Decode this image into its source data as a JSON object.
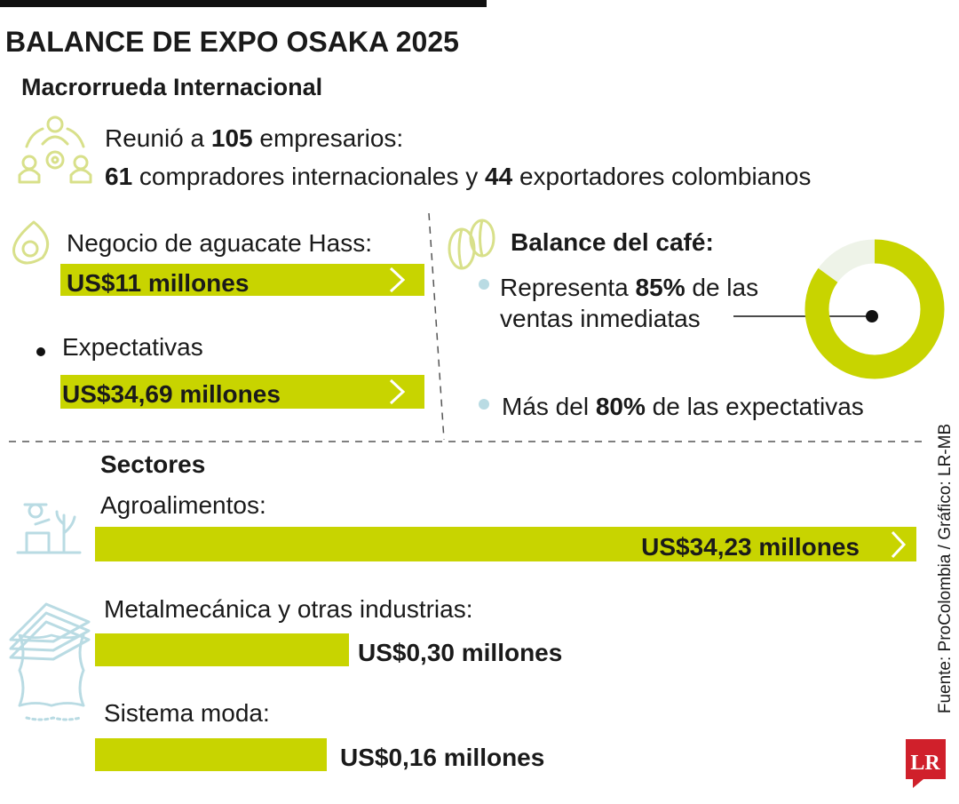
{
  "title": "BALANCE DE EXPO OSAKA 2025",
  "subtitle": "Macrorrueda Internacional",
  "macro": {
    "line1": {
      "before": "Reunió a ",
      "total": "105",
      "after": " empresarios:"
    },
    "line2": {
      "buyers": "61",
      "middle": " compradores internacionales y ",
      "exporters": "44",
      "after": " exportadores colombianos"
    }
  },
  "aguacate": {
    "label": "Negocio de aguacate Hass:",
    "value": "US$11 millones",
    "expect_label": "Expectativas",
    "expect_value": "US$34,69 millones"
  },
  "cafe": {
    "title": "Balance del café:",
    "item1": {
      "before": "Representa ",
      "value": 85,
      "value_label": "85%",
      "after": " de las",
      "line2": "ventas inmediatas"
    },
    "item2": {
      "before": "Más del ",
      "value_label": "80%",
      "after": " de las expectativas"
    }
  },
  "sectores": {
    "title": "Sectores",
    "items": [
      {
        "label": "Agroalimentos:",
        "value": "US$34,23 millones"
      },
      {
        "label": "Metalmecánica y otras industrias:",
        "value": "US$0,30 millones"
      },
      {
        "label": "Sistema moda:",
        "value": "US$0,16 millones"
      }
    ]
  },
  "source": "Fuente: ProColombia / Gráfico: LR-MB",
  "logo": "LR"
}
